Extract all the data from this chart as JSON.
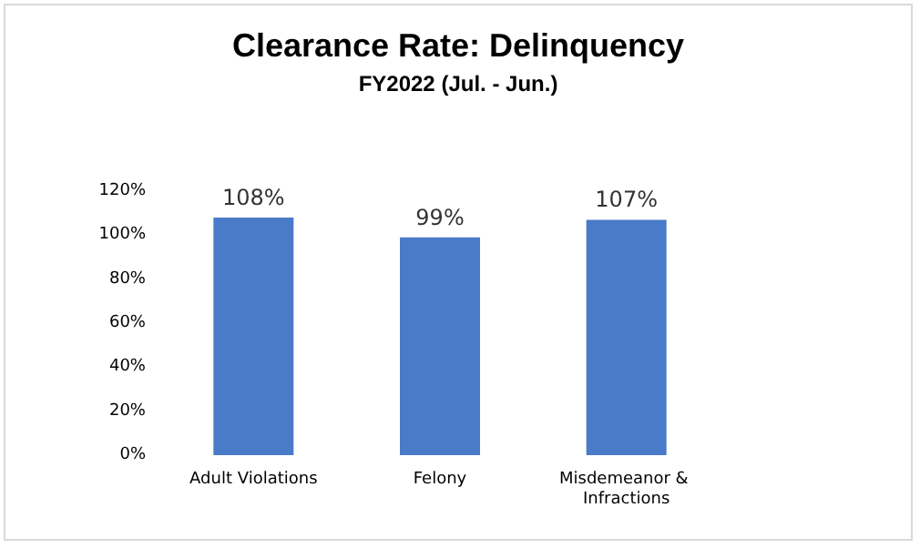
{
  "chart_data": {
    "type": "bar",
    "title": "Clearance Rate: Delinquency",
    "subtitle": "FY2022 (Jul. - Jun.)",
    "categories": [
      "Adult Violations",
      "Felony",
      "Misdemeanor & Infractions"
    ],
    "values": [
      108,
      99,
      107
    ],
    "value_labels": [
      "108%",
      "99%",
      "107%"
    ],
    "color": "#4a7bc8",
    "ylim": [
      0,
      120
    ],
    "yticks": [
      {
        "value": 0,
        "label": "0%"
      },
      {
        "value": 20,
        "label": "20%"
      },
      {
        "value": 40,
        "label": "40%"
      },
      {
        "value": 60,
        "label": "60%"
      },
      {
        "value": 80,
        "label": "80%"
      },
      {
        "value": 100,
        "label": "100%"
      },
      {
        "value": 120,
        "label": "120%"
      }
    ],
    "grid": false
  }
}
